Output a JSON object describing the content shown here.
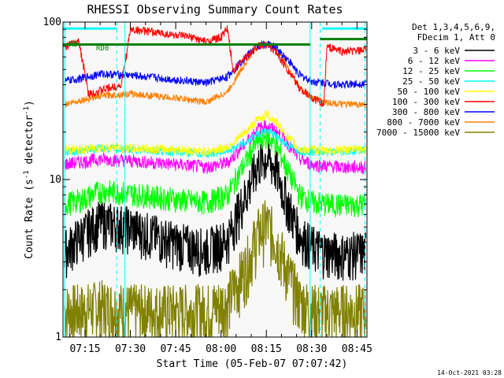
{
  "chart_data": {
    "type": "line",
    "title": "RHESSI Observing Summary Count Rates",
    "xlabel": "Start Time (05-Feb-07 07:07:42)",
    "ylabel_main": "Count Rate (s",
    "ylabel_sup1": "-1",
    "ylabel_mid": " detector",
    "ylabel_sup2": "-1",
    "ylabel_end": ")",
    "yscale": "log",
    "ylim": [
      1,
      100
    ],
    "y_tick_labels": [
      "1",
      "10",
      "100"
    ],
    "x_tick_labels": [
      "07:15",
      "07:30",
      "07:45",
      "08:00",
      "08:15",
      "08:30",
      "08:45"
    ],
    "x_unit": "minutes after 07:00",
    "x_ticks": [
      15,
      30,
      45,
      60,
      75,
      90,
      105
    ],
    "xlim": [
      7.7,
      108.3
    ],
    "legend_header": [
      "Det 1,3,4,5,6,9,",
      "FDecim 1, Att 0"
    ],
    "legend_position": "right",
    "timestamp": "14-Oct-2021 03:28",
    "markers": [
      {
        "label": "RD0",
        "color": "#008000"
      },
      {
        "label": "RD",
        "color": "#008000"
      }
    ],
    "series": [
      {
        "name": "3 - 6 keV",
        "color": "#000000",
        "x": [
          8,
          14,
          20,
          30,
          45,
          55,
          62,
          68,
          72,
          75,
          78,
          82,
          86,
          90,
          95,
          100,
          108
        ],
        "y": [
          3.5,
          4.5,
          5.5,
          5.0,
          4.0,
          3.6,
          4.2,
          8.0,
          12.5,
          14.0,
          12.0,
          7.0,
          4.5,
          3.8,
          3.5,
          3.4,
          3.5
        ]
      },
      {
        "name": "6 - 12 keV",
        "color": "#ff00ff",
        "x": [
          8,
          14,
          20,
          30,
          45,
          55,
          62,
          68,
          72,
          75,
          78,
          82,
          86,
          90,
          95,
          100,
          108
        ],
        "y": [
          12.5,
          13.0,
          13.5,
          13.2,
          12.5,
          12.0,
          12.8,
          17.0,
          21.0,
          22.0,
          20.5,
          17.0,
          13.5,
          12.5,
          12.2,
          12.0,
          12.0
        ]
      },
      {
        "name": "12 - 25 keV",
        "color": "#00ff00",
        "x": [
          8,
          14,
          20,
          30,
          45,
          55,
          62,
          68,
          72,
          75,
          78,
          82,
          86,
          90,
          95,
          100,
          108
        ],
        "y": [
          7.0,
          7.5,
          8.5,
          8.2,
          7.5,
          7.2,
          8.0,
          13.0,
          17.5,
          19.0,
          17.0,
          11.5,
          8.0,
          7.2,
          7.0,
          6.9,
          7.0
        ]
      },
      {
        "name": "25 - 50 keV",
        "color": "#00ffff",
        "x": [
          8,
          14,
          20,
          30,
          45,
          55,
          62,
          68,
          72,
          75,
          78,
          82,
          86,
          90,
          95,
          100,
          108
        ],
        "y": [
          15.0,
          15.2,
          15.8,
          15.5,
          15.0,
          14.5,
          15.2,
          17.0,
          19.5,
          20.5,
          19.0,
          16.5,
          15.2,
          15.0,
          15.0,
          15.0,
          15.5
        ]
      },
      {
        "name": "50 - 100 keV",
        "color": "#ffff00",
        "x": [
          8,
          14,
          20,
          30,
          45,
          55,
          62,
          68,
          72,
          75,
          78,
          82,
          86,
          90,
          95,
          100,
          108
        ],
        "y": [
          15.5,
          15.5,
          16.0,
          15.8,
          15.5,
          15.0,
          16.0,
          20.0,
          24.0,
          26.0,
          23.5,
          18.5,
          15.5,
          15.5,
          15.2,
          15.5,
          15.5
        ]
      },
      {
        "name": "100 - 300 keV",
        "color": "#ff0000",
        "x": [
          8,
          13,
          16,
          27,
          30,
          40,
          50,
          55,
          60,
          62,
          64,
          68,
          72,
          75,
          78,
          82,
          86,
          90,
          94,
          95,
          100,
          108
        ],
        "y": [
          70,
          75,
          35,
          40,
          90,
          85,
          80,
          75,
          80,
          92,
          48,
          60,
          70,
          72,
          65,
          50,
          38,
          33,
          30,
          70,
          65,
          66
        ]
      },
      {
        "name": "300 - 800 keV",
        "color": "#0000ff",
        "x": [
          8,
          14,
          20,
          30,
          45,
          55,
          62,
          68,
          72,
          75,
          78,
          82,
          86,
          90,
          95,
          100,
          108
        ],
        "y": [
          42,
          44,
          47,
          46,
          43,
          41,
          45,
          60,
          70,
          73,
          69,
          58,
          46,
          42,
          41,
          40,
          41
        ]
      },
      {
        "name": "800 - 7000 keV",
        "color": "#ff8000",
        "x": [
          8,
          14,
          20,
          30,
          45,
          55,
          62,
          68,
          72,
          75,
          78,
          82,
          86,
          90,
          95,
          100,
          108
        ],
        "y": [
          30,
          32,
          34,
          35,
          33,
          31,
          36,
          55,
          70,
          74,
          69,
          52,
          38,
          33,
          31,
          30,
          30
        ]
      },
      {
        "name": "7000 - 15000 keV",
        "color": "#808000",
        "x": [
          8,
          14,
          20,
          30,
          45,
          55,
          62,
          68,
          72,
          75,
          78,
          82,
          86,
          90,
          95,
          100,
          108
        ],
        "y": [
          1.5,
          1.5,
          1.6,
          1.5,
          1.5,
          1.5,
          1.7,
          2.8,
          4.5,
          5.3,
          4.3,
          2.6,
          1.7,
          1.5,
          1.5,
          1.5,
          1.5
        ]
      }
    ]
  }
}
